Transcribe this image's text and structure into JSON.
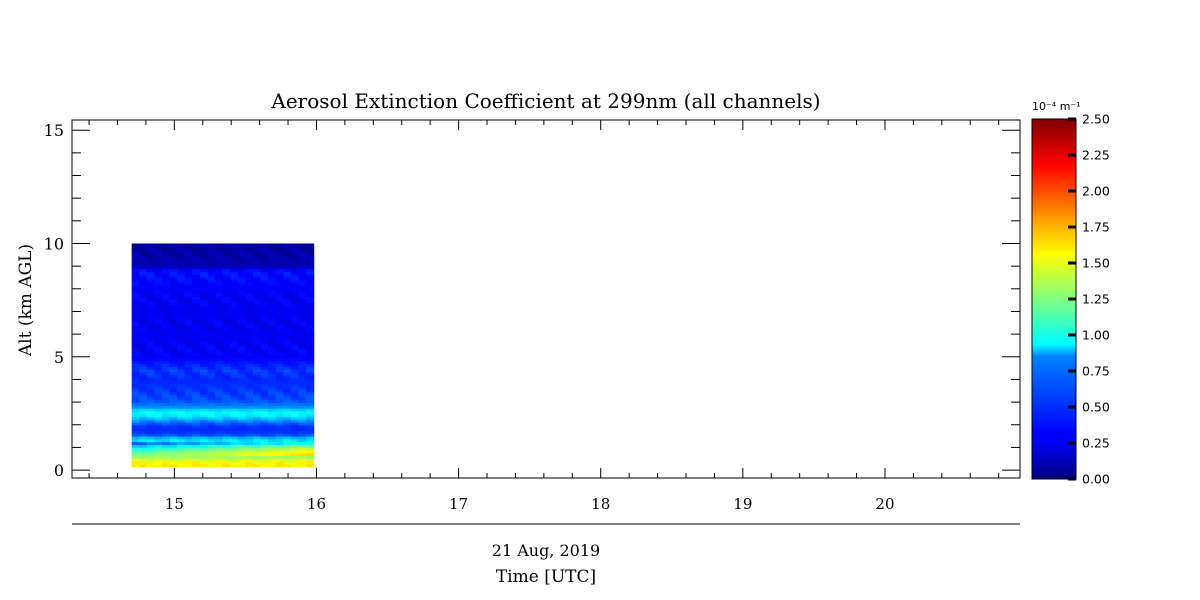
{
  "chart_data": {
    "type": "heatmap",
    "title": "Aerosol Extinction Coefficient at 299nm (all channels)",
    "xlabel": "Time [UTC]",
    "date_label": "21 Aug, 2019",
    "ylabel": "Alt (km AGL)",
    "x_ticks": [
      "15",
      "16",
      "17",
      "18",
      "19",
      "20"
    ],
    "x_tick_values": [
      15,
      16,
      17,
      18,
      19,
      20
    ],
    "xlim": [
      14.28,
      20.95
    ],
    "y_ticks": [
      "0",
      "5",
      "10",
      "15"
    ],
    "y_tick_values": [
      0,
      5,
      10,
      15
    ],
    "ylim": [
      -0.35,
      15.45
    ],
    "colorbar": {
      "unit_label": "10⁻⁴ m⁻¹",
      "range": [
        0,
        2.5
      ],
      "ticks": [
        "0.00",
        "0.25",
        "0.50",
        "0.75",
        "1.00",
        "1.25",
        "1.50",
        "1.75",
        "2.00",
        "2.25",
        "2.50"
      ],
      "tick_values": [
        0,
        0.25,
        0.5,
        0.75,
        1.0,
        1.25,
        1.5,
        1.75,
        2.0,
        2.25,
        2.5
      ],
      "colormap": "jet"
    },
    "data_region": {
      "time_start": 14.7,
      "time_end": 15.98,
      "alt_min": 0.15,
      "alt_max": 10.0
    },
    "profile": [
      {
        "alt": 0.15,
        "value": 1.6
      },
      {
        "alt": 0.4,
        "value": 1.55
      },
      {
        "alt": 0.6,
        "value": 1.3
      },
      {
        "alt": 0.85,
        "value": 1.1
      },
      {
        "alt": 1.05,
        "value": 0.85
      },
      {
        "alt": 1.2,
        "value": 0.55
      },
      {
        "alt": 1.35,
        "value": 0.95
      },
      {
        "alt": 1.6,
        "value": 0.45
      },
      {
        "alt": 1.9,
        "value": 0.4
      },
      {
        "alt": 2.1,
        "value": 0.55
      },
      {
        "alt": 2.4,
        "value": 0.9
      },
      {
        "alt": 2.6,
        "value": 0.95
      },
      {
        "alt": 2.8,
        "value": 0.65
      },
      {
        "alt": 3.1,
        "value": 0.5
      },
      {
        "alt": 3.5,
        "value": 0.45
      },
      {
        "alt": 4.0,
        "value": 0.4
      },
      {
        "alt": 4.4,
        "value": 0.45
      },
      {
        "alt": 5.0,
        "value": 0.3
      },
      {
        "alt": 6.0,
        "value": 0.28
      },
      {
        "alt": 7.0,
        "value": 0.28
      },
      {
        "alt": 8.0,
        "value": 0.3
      },
      {
        "alt": 8.8,
        "value": 0.35
      },
      {
        "alt": 9.0,
        "value": 0.12
      },
      {
        "alt": 10.0,
        "value": 0.08
      }
    ],
    "late_boost": [
      {
        "alt_min": 0.7,
        "alt_max": 1.25,
        "add": 0.45
      }
    ]
  }
}
